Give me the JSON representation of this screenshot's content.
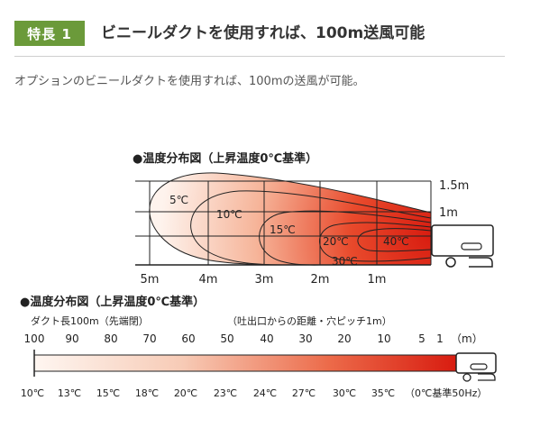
{
  "feature": {
    "badge": "特長 1",
    "title": "ビニールダクトを使用すれば、100m送風可能",
    "intro": "オプションのビニールダクトを使用すれば、100mの送風が可能。"
  },
  "diagram1": {
    "heading": "●温度分布図（上昇温度0℃基準）",
    "height_labels": [
      "1.5m",
      "1m"
    ],
    "distance_labels": [
      "5m",
      "4m",
      "3m",
      "2m",
      "1m"
    ],
    "contour_labels": [
      "5℃",
      "10℃",
      "15℃",
      "20℃",
      "30℃",
      "40℃"
    ]
  },
  "diagram2": {
    "heading": "●温度分布図（上昇温度0℃基準）",
    "duct_note": "ダクト長100m（先端閉）",
    "distance_note": "（吐出口からの距離・穴ピッチ1m）",
    "distance_labels": [
      "100",
      "90",
      "80",
      "70",
      "60",
      "50",
      "40",
      "30",
      "20",
      "10",
      "5",
      "1",
      "（m）"
    ],
    "temp_labels": [
      "10℃",
      "13℃",
      "15℃",
      "18℃",
      "20℃",
      "23℃",
      "24℃",
      "27℃",
      "30℃",
      "35℃",
      "（0℃基準50Hz）"
    ]
  },
  "colors": {
    "badge": "#6b9a3a",
    "hot": "#d81c10",
    "cool": "#fdf1ea"
  }
}
